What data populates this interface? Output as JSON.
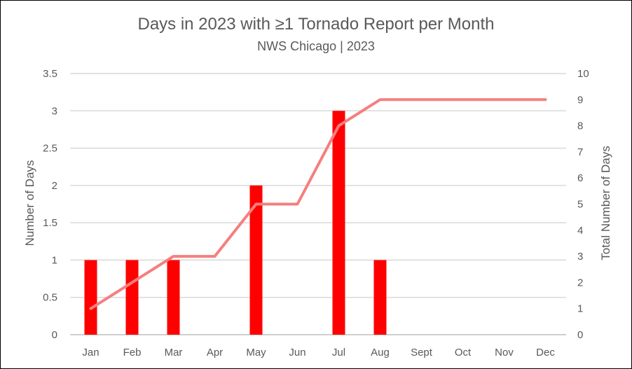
{
  "chart_data": {
    "type": "bar",
    "title": "Days in 2023 with ≥1 Tornado Report per Month",
    "subtitle": "NWS Chicago | 2023",
    "categories": [
      "Jan",
      "Feb",
      "Mar",
      "Apr",
      "May",
      "Jun",
      "Jul",
      "Aug",
      "Sept",
      "Oct",
      "Nov",
      "Dec"
    ],
    "series": [
      {
        "type": "bar",
        "axis": "left",
        "color": "#ff0000",
        "values": [
          1,
          1,
          1,
          0,
          2,
          0,
          3,
          1,
          0,
          0,
          0,
          0
        ]
      },
      {
        "type": "line",
        "axis": "right",
        "color": "#f57f7f",
        "values": [
          1,
          2,
          3,
          3,
          5,
          5,
          8,
          9,
          9,
          9,
          9,
          9
        ]
      }
    ],
    "ylabel": "Number of Days",
    "y2label": "Total Number of Days",
    "ylim": [
      0,
      3.5
    ],
    "y2lim": [
      0,
      10
    ],
    "yticks": [
      "0",
      "0.5",
      "1",
      "1.5",
      "2",
      "2.5",
      "3",
      "3.5"
    ],
    "y2ticks": [
      "0",
      "1",
      "2",
      "3",
      "4",
      "5",
      "6",
      "7",
      "8",
      "9",
      "10"
    ],
    "grid": true,
    "legend": "none"
  }
}
